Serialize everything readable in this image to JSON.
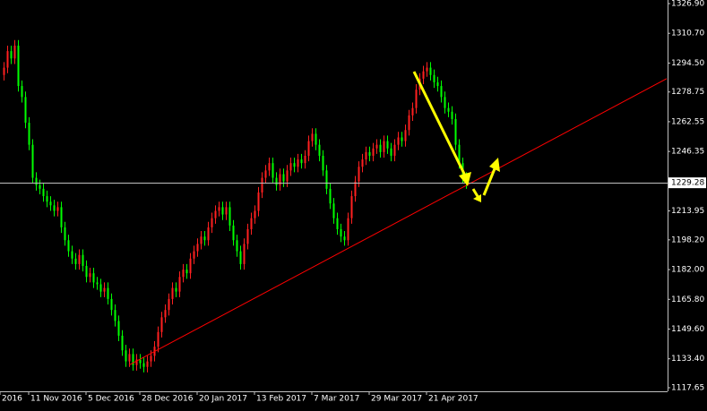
{
  "chart_data": {
    "type": "candlestick",
    "up_color": "#ff2020",
    "down_color": "#00ff00",
    "xlim": [
      -1,
      185.25
    ],
    "ylim": [
      1115.7,
      1328.85
    ],
    "yticks": [
      {
        "value": 1117.65,
        "label": "1117.65"
      },
      {
        "value": 1133.4,
        "label": "1133.40"
      },
      {
        "value": 1149.6,
        "label": "1149.60"
      },
      {
        "value": 1165.8,
        "label": "1165.80"
      },
      {
        "value": 1182,
        "label": "1182.00"
      },
      {
        "value": 1198.2,
        "label": "1198.20"
      },
      {
        "value": 1213.95,
        "label": "1213.95"
      },
      {
        "value": 1246.35,
        "label": "1246.35"
      },
      {
        "value": 1262.55,
        "label": "1262.55"
      },
      {
        "value": 1278.75,
        "label": "1278.75"
      },
      {
        "value": 1294.5,
        "label": "1294.50"
      },
      {
        "value": 1310.7,
        "label": "1310.70"
      },
      {
        "value": 1326.9,
        "label": "1326.90"
      }
    ],
    "xticks": [
      {
        "value": -1,
        "label": "2016"
      },
      {
        "value": 7,
        "label": "11 Nov 2016"
      },
      {
        "value": 23,
        "label": "5 Dec 2016"
      },
      {
        "value": 38,
        "label": "28 Dec 2016"
      },
      {
        "value": 54,
        "label": "20 Jan 2017"
      },
      {
        "value": 70,
        "label": "13 Feb 2017"
      },
      {
        "value": 86,
        "label": "7 Mar 2017"
      },
      {
        "value": 102,
        "label": "29 Mar 2017"
      },
      {
        "value": 118,
        "label": "21 Apr 2017"
      }
    ],
    "current_price": {
      "value": 1229.28,
      "label": "1229.28"
    },
    "trendline": {
      "x": [
        35,
        185
      ],
      "y": [
        1130,
        1286
      ],
      "color": "#ff0000"
    },
    "candles": [
      [
        1288,
        1295,
        1285,
        1292
      ],
      [
        1292,
        1304,
        1289,
        1301
      ],
      [
        1301,
        1304,
        1294,
        1297
      ],
      [
        1297,
        1307,
        1294,
        1304
      ],
      [
        1304,
        1307,
        1279,
        1282
      ],
      [
        1282,
        1285,
        1273,
        1276
      ],
      [
        1276,
        1279,
        1259,
        1262
      ],
      [
        1262,
        1265,
        1247,
        1250
      ],
      [
        1250,
        1253,
        1229,
        1232
      ],
      [
        1232,
        1235,
        1225,
        1228
      ],
      [
        1228,
        1231,
        1223,
        1226
      ],
      [
        1226,
        1229,
        1219,
        1222
      ],
      [
        1222,
        1225,
        1216,
        1219
      ],
      [
        1219,
        1222,
        1214,
        1217
      ],
      [
        1217,
        1220,
        1211,
        1214
      ],
      [
        1214,
        1219,
        1211,
        1216
      ],
      [
        1216,
        1219,
        1202,
        1205
      ],
      [
        1205,
        1208,
        1195,
        1198
      ],
      [
        1198,
        1201,
        1189,
        1192
      ],
      [
        1192,
        1195,
        1185,
        1188
      ],
      [
        1188,
        1191,
        1182,
        1185
      ],
      [
        1185,
        1193,
        1182,
        1190
      ],
      [
        1190,
        1193,
        1181,
        1184
      ],
      [
        1184,
        1187,
        1175,
        1178
      ],
      [
        1178,
        1183,
        1175,
        1180
      ],
      [
        1180,
        1183,
        1172,
        1175
      ],
      [
        1175,
        1178,
        1171,
        1174
      ],
      [
        1174,
        1177,
        1167,
        1170
      ],
      [
        1170,
        1175,
        1167,
        1172
      ],
      [
        1172,
        1175,
        1163,
        1166
      ],
      [
        1166,
        1169,
        1157,
        1160
      ],
      [
        1160,
        1163,
        1151,
        1154
      ],
      [
        1154,
        1157,
        1143,
        1146
      ],
      [
        1146,
        1149,
        1135,
        1138
      ],
      [
        1138,
        1141,
        1129,
        1132
      ],
      [
        1132,
        1139,
        1129,
        1136
      ],
      [
        1136,
        1139,
        1127,
        1130
      ],
      [
        1130,
        1136,
        1127,
        1133
      ],
      [
        1133,
        1136,
        1128,
        1131
      ],
      [
        1131,
        1134,
        1126,
        1129
      ],
      [
        1129,
        1135,
        1126,
        1132
      ],
      [
        1132,
        1138,
        1129,
        1135
      ],
      [
        1135,
        1143,
        1132,
        1140
      ],
      [
        1140,
        1151,
        1137,
        1148
      ],
      [
        1148,
        1159,
        1145,
        1156
      ],
      [
        1156,
        1163,
        1153,
        1160
      ],
      [
        1160,
        1169,
        1157,
        1166
      ],
      [
        1166,
        1175,
        1163,
        1172
      ],
      [
        1172,
        1175,
        1167,
        1170
      ],
      [
        1170,
        1181,
        1167,
        1178
      ],
      [
        1178,
        1185,
        1175,
        1182
      ],
      [
        1182,
        1185,
        1177,
        1180
      ],
      [
        1180,
        1191,
        1177,
        1188
      ],
      [
        1188,
        1195,
        1185,
        1192
      ],
      [
        1192,
        1199,
        1189,
        1196
      ],
      [
        1196,
        1203,
        1193,
        1200
      ],
      [
        1200,
        1203,
        1195,
        1198
      ],
      [
        1198,
        1208,
        1195,
        1205
      ],
      [
        1205,
        1213,
        1202,
        1210
      ],
      [
        1210,
        1217,
        1207,
        1214
      ],
      [
        1214,
        1219,
        1211,
        1216
      ],
      [
        1216,
        1219,
        1209,
        1212
      ],
      [
        1212,
        1219,
        1209,
        1216
      ],
      [
        1216,
        1219,
        1203,
        1206
      ],
      [
        1206,
        1209,
        1195,
        1198
      ],
      [
        1198,
        1201,
        1189,
        1192
      ],
      [
        1192,
        1195,
        1182,
        1185
      ],
      [
        1185,
        1199,
        1182,
        1196
      ],
      [
        1196,
        1207,
        1193,
        1204
      ],
      [
        1204,
        1213,
        1201,
        1210
      ],
      [
        1210,
        1217,
        1207,
        1214
      ],
      [
        1214,
        1227,
        1211,
        1224
      ],
      [
        1224,
        1235,
        1221,
        1232
      ],
      [
        1232,
        1239,
        1229,
        1236
      ],
      [
        1236,
        1243,
        1233,
        1240
      ],
      [
        1240,
        1243,
        1229,
        1232
      ],
      [
        1232,
        1235,
        1225,
        1228
      ],
      [
        1228,
        1237,
        1225,
        1234
      ],
      [
        1234,
        1237,
        1227,
        1230
      ],
      [
        1230,
        1239,
        1227,
        1236
      ],
      [
        1236,
        1243,
        1233,
        1240
      ],
      [
        1240,
        1243,
        1235,
        1238
      ],
      [
        1238,
        1245,
        1235,
        1242
      ],
      [
        1242,
        1245,
        1237,
        1240
      ],
      [
        1240,
        1247,
        1237,
        1244
      ],
      [
        1244,
        1255,
        1241,
        1252
      ],
      [
        1252,
        1259,
        1249,
        1256
      ],
      [
        1256,
        1259,
        1247,
        1250
      ],
      [
        1250,
        1253,
        1241,
        1244
      ],
      [
        1244,
        1247,
        1233,
        1236
      ],
      [
        1236,
        1239,
        1223,
        1226
      ],
      [
        1226,
        1229,
        1215,
        1218
      ],
      [
        1218,
        1221,
        1207,
        1210
      ],
      [
        1210,
        1213,
        1201,
        1204
      ],
      [
        1204,
        1207,
        1197,
        1200
      ],
      [
        1200,
        1203,
        1195,
        1198
      ],
      [
        1198,
        1213,
        1195,
        1210
      ],
      [
        1210,
        1225,
        1207,
        1222
      ],
      [
        1222,
        1233,
        1219,
        1230
      ],
      [
        1230,
        1241,
        1227,
        1238
      ],
      [
        1238,
        1245,
        1235,
        1242
      ],
      [
        1242,
        1249,
        1239,
        1246
      ],
      [
        1246,
        1249,
        1241,
        1244
      ],
      [
        1244,
        1251,
        1241,
        1248
      ],
      [
        1248,
        1253,
        1245,
        1250
      ],
      [
        1250,
        1253,
        1243,
        1246
      ],
      [
        1246,
        1255,
        1243,
        1252
      ],
      [
        1252,
        1255,
        1245,
        1248
      ],
      [
        1248,
        1251,
        1241,
        1244
      ],
      [
        1244,
        1253,
        1241,
        1250
      ],
      [
        1250,
        1257,
        1247,
        1254
      ],
      [
        1254,
        1257,
        1249,
        1252
      ],
      [
        1252,
        1261,
        1249,
        1258
      ],
      [
        1258,
        1269,
        1255,
        1266
      ],
      [
        1266,
        1273,
        1263,
        1270
      ],
      [
        1270,
        1283,
        1267,
        1280
      ],
      [
        1280,
        1289,
        1277,
        1286
      ],
      [
        1286,
        1293,
        1283,
        1290
      ],
      [
        1290,
        1295,
        1287,
        1292
      ],
      [
        1292,
        1295,
        1285,
        1288
      ],
      [
        1288,
        1291,
        1281,
        1284
      ],
      [
        1284,
        1287,
        1279,
        1282
      ],
      [
        1282,
        1285,
        1273,
        1276
      ],
      [
        1276,
        1279,
        1267,
        1270
      ],
      [
        1270,
        1273,
        1265,
        1268
      ],
      [
        1268,
        1271,
        1261,
        1264
      ],
      [
        1264,
        1267,
        1247,
        1250
      ],
      [
        1250,
        1253,
        1237,
        1240
      ],
      [
        1240,
        1243,
        1229,
        1232
      ],
      [
        1232,
        1235,
        1226,
        1229
      ]
    ]
  }
}
